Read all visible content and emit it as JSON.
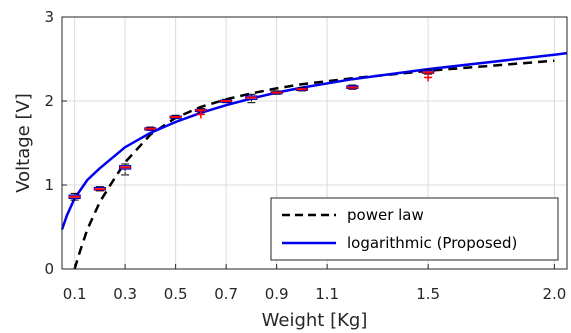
{
  "chart_data": {
    "type": "line",
    "xlabel": "Weight [Kg]",
    "ylabel": "Voltage [V]",
    "xlim": [
      0.05,
      2.05
    ],
    "ylim": [
      0,
      3
    ],
    "x_ticks": [
      0.1,
      0.3,
      0.5,
      0.7,
      0.9,
      1.1,
      1.5,
      2.0
    ],
    "x_tick_labels": [
      "0.1",
      "0.3",
      "0.5",
      "0.7",
      "0.9",
      "1.1",
      "1.5",
      "2.0"
    ],
    "y_ticks": [
      0,
      1,
      2,
      3
    ],
    "y_tick_labels": [
      "0",
      "1",
      "2",
      "3"
    ],
    "grid": true,
    "legend_position": "bottom-right",
    "series": [
      {
        "name": "power law",
        "style": "dashed",
        "color": "#000000",
        "x": [
          0.1,
          0.12,
          0.15,
          0.2,
          0.25,
          0.3,
          0.4,
          0.5,
          0.6,
          0.7,
          0.8,
          0.9,
          1.0,
          1.2,
          1.5,
          2.0
        ],
        "y": [
          0.0,
          0.2,
          0.47,
          0.8,
          1.04,
          1.27,
          1.6,
          1.8,
          1.93,
          2.02,
          2.09,
          2.15,
          2.2,
          2.27,
          2.36,
          2.48
        ]
      },
      {
        "name": "logarithmic (Proposed)",
        "style": "solid",
        "color": "#0000ee",
        "x": [
          0.05,
          0.07,
          0.1,
          0.15,
          0.2,
          0.3,
          0.4,
          0.5,
          0.6,
          0.7,
          0.8,
          0.9,
          1.0,
          1.2,
          1.5,
          2.0,
          2.05
        ],
        "y": [
          0.47,
          0.64,
          0.84,
          1.06,
          1.2,
          1.45,
          1.62,
          1.75,
          1.86,
          1.95,
          2.03,
          2.1,
          2.16,
          2.26,
          2.38,
          2.55,
          2.57
        ]
      }
    ],
    "boxplots": [
      {
        "x": 0.1,
        "median": 0.86,
        "q1": 0.84,
        "q3": 0.88,
        "whisker_low": 0.82,
        "whisker_high": 0.9,
        "outliers": []
      },
      {
        "x": 0.2,
        "median": 0.95,
        "q1": 0.94,
        "q3": 0.97,
        "whisker_low": 0.93,
        "whisker_high": 0.98,
        "outliers": []
      },
      {
        "x": 0.3,
        "median": 1.21,
        "q1": 1.19,
        "q3": 1.23,
        "whisker_low": 1.12,
        "whisker_high": 1.25,
        "outliers": []
      },
      {
        "x": 0.4,
        "median": 1.67,
        "q1": 1.66,
        "q3": 1.68,
        "whisker_low": 1.65,
        "whisker_high": 1.69,
        "outliers": []
      },
      {
        "x": 0.5,
        "median": 1.81,
        "q1": 1.8,
        "q3": 1.82,
        "whisker_low": 1.79,
        "whisker_high": 1.83,
        "outliers": []
      },
      {
        "x": 0.6,
        "median": 1.89,
        "q1": 1.88,
        "q3": 1.9,
        "whisker_low": 1.87,
        "whisker_high": 1.91,
        "outliers": [
          1.84
        ]
      },
      {
        "x": 0.7,
        "median": 2.0,
        "q1": 1.99,
        "q3": 2.01,
        "whisker_low": 1.98,
        "whisker_high": 2.02,
        "outliers": []
      },
      {
        "x": 0.8,
        "median": 2.04,
        "q1": 2.02,
        "q3": 2.06,
        "whisker_low": 1.98,
        "whisker_high": 2.08,
        "outliers": []
      },
      {
        "x": 0.9,
        "median": 2.1,
        "q1": 2.09,
        "q3": 2.11,
        "whisker_low": 2.08,
        "whisker_high": 2.12,
        "outliers": []
      },
      {
        "x": 1.0,
        "median": 2.14,
        "q1": 2.13,
        "q3": 2.15,
        "whisker_low": 2.12,
        "whisker_high": 2.16,
        "outliers": []
      },
      {
        "x": 1.2,
        "median": 2.16,
        "q1": 2.15,
        "q3": 2.18,
        "whisker_low": 2.14,
        "whisker_high": 2.19,
        "outliers": []
      },
      {
        "x": 1.5,
        "median": 2.34,
        "q1": 2.33,
        "q3": 2.36,
        "whisker_low": 2.32,
        "whisker_high": 2.37,
        "outliers": [
          2.28
        ]
      }
    ],
    "boxplot_box_color": "#0000cc",
    "boxplot_median_color": "#ff0000",
    "boxplot_whisker_color": "#000000",
    "boxplot_outlier_color": "#ff0000"
  }
}
